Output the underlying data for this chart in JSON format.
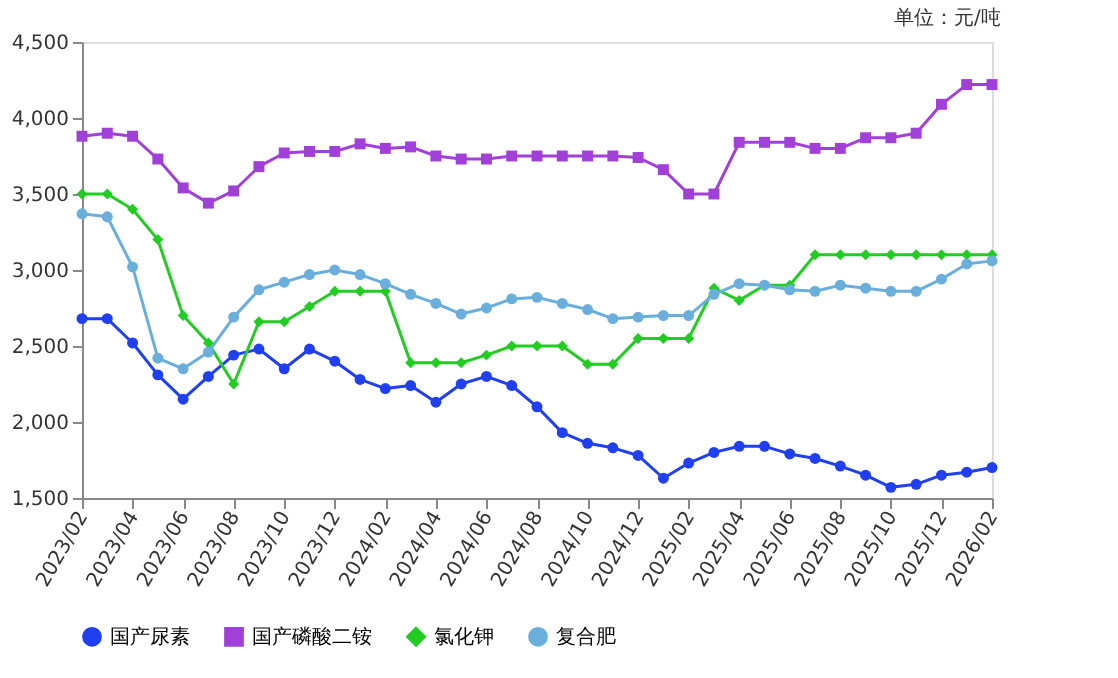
{
  "chart_data": {
    "type": "line",
    "categories": [
      "2023/02",
      null,
      "2023/04",
      null,
      "2023/06",
      null,
      "2023/08",
      null,
      "2023/10",
      null,
      "2023/12",
      null,
      "2024/02",
      null,
      "2024/04",
      null,
      "2024/06",
      null,
      "2024/08",
      null,
      "2024/10",
      null,
      "2024/12",
      null,
      "2025/02",
      null,
      "2025/04",
      null,
      "2025/06",
      null,
      "2025/08",
      null,
      "2025/10",
      null,
      "2025/12",
      null,
      "2026/02"
    ],
    "series": [
      {
        "name": "国产尿素",
        "color": "#1f3ff0",
        "marker": "circle",
        "values": [
          2680,
          2680,
          2520,
          2310,
          2150,
          2300,
          2440,
          2480,
          2350,
          2480,
          2400,
          2280,
          2220,
          2240,
          2130,
          2250,
          2300,
          2240,
          2100,
          1930,
          1860,
          1830,
          1780,
          1630,
          1730,
          1800,
          1840,
          1840,
          1790,
          1760,
          1710,
          1650,
          1570,
          1590,
          1650,
          1670,
          1700
        ]
      },
      {
        "name": "国产磷酸二铵",
        "color": "#a040d8",
        "marker": "square",
        "values": [
          3880,
          3900,
          3880,
          3730,
          3540,
          3440,
          3520,
          3680,
          3770,
          3780,
          3780,
          3830,
          3800,
          3810,
          3750,
          3730,
          3730,
          3750,
          3750,
          3750,
          3750,
          3750,
          3740,
          3660,
          3500,
          3500,
          3840,
          3840,
          3840,
          3800,
          3800,
          3870,
          3870,
          3900,
          4090,
          4220,
          4220
        ]
      },
      {
        "name": "氯化钾",
        "color": "#22cc22",
        "marker": "diamond",
        "values": [
          3500,
          3500,
          3400,
          3200,
          2700,
          2520,
          2250,
          2660,
          2660,
          2760,
          2860,
          2860,
          2860,
          2390,
          2390,
          2390,
          2440,
          2500,
          2500,
          2500,
          2380,
          2380,
          2550,
          2550,
          2550,
          2880,
          2800,
          2900,
          2900,
          3100,
          3100,
          3100,
          3100,
          3100,
          3100,
          3100,
          3100
        ]
      },
      {
        "name": "复合肥",
        "color": "#6aaedc",
        "marker": "circle",
        "values": [
          3370,
          3350,
          3020,
          2420,
          2350,
          2460,
          2690,
          2870,
          2920,
          2970,
          3000,
          2970,
          2910,
          2840,
          2780,
          2710,
          2750,
          2810,
          2820,
          2780,
          2740,
          2680,
          2690,
          2700,
          2700,
          2840,
          2910,
          2900,
          2870,
          2860,
          2900,
          2880,
          2860,
          2860,
          2940,
          3040,
          3060
        ]
      }
    ],
    "ylim": [
      1500,
      4500
    ],
    "yticks": [
      {
        "value": 1500,
        "label": "1,500"
      },
      {
        "value": 2000,
        "label": "2,000"
      },
      {
        "value": 2500,
        "label": "2,500"
      },
      {
        "value": 3000,
        "label": "3,000"
      },
      {
        "value": 3500,
        "label": "3,500"
      },
      {
        "value": 4000,
        "label": "4,000"
      },
      {
        "value": 4500,
        "label": "4,500"
      }
    ],
    "grid": false,
    "legend": "bottom",
    "annotations": [
      "单位：元/吨"
    ]
  }
}
